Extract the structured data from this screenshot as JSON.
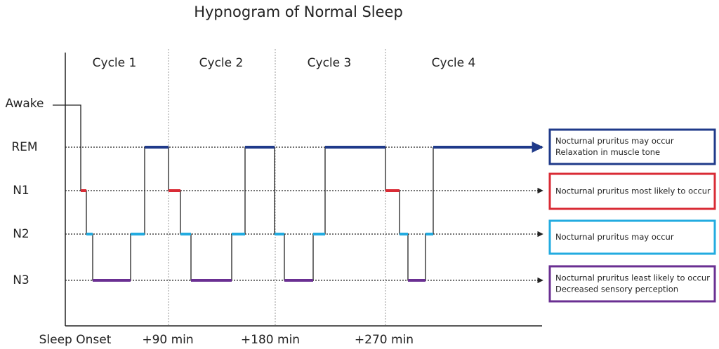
{
  "title": "Hypnogram of Normal Sleep",
  "stages": [
    "Awake",
    "REM",
    "N1",
    "N2",
    "N3"
  ],
  "cycles": [
    "Cycle 1",
    "Cycle 2",
    "Cycle 3",
    "Cycle 4"
  ],
  "time_labels": [
    "Sleep Onset",
    "+90 min",
    "+180 min",
    "+270 min"
  ],
  "notes": [
    {
      "lines": [
        "Nocturnal pruritus may occur",
        "Relaxation in muscle tone"
      ]
    },
    {
      "lines": [
        "Nocturnal pruritus most likely to occur"
      ]
    },
    {
      "lines": [
        "Nocturnal pruritus may occur"
      ]
    },
    {
      "lines": [
        "Nocturnal pruritus least likely to occur",
        "Decreased sensory perception"
      ]
    }
  ]
}
